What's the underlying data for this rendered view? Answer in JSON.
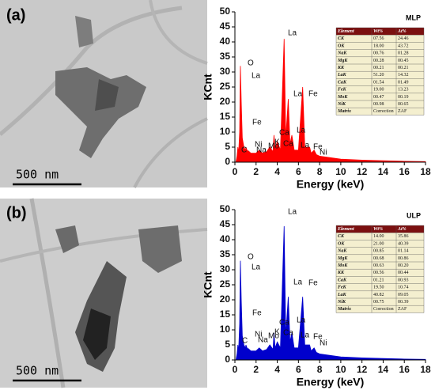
{
  "images": [
    {
      "label": "(a)",
      "scale_bar": "500 nm"
    },
    {
      "label": "(b)",
      "scale_bar": "500 nm"
    }
  ],
  "chart_data": [
    {
      "type": "area",
      "ylabel": "KCnt",
      "xlabel": "Energy (keV)",
      "color": "#ff0000",
      "x": [
        0.1,
        0.2,
        0.28,
        0.35,
        0.45,
        0.52,
        0.6,
        0.7,
        0.85,
        1.0,
        1.04,
        1.2,
        1.25,
        1.5,
        2.0,
        2.3,
        2.6,
        3.0,
        3.3,
        3.6,
        3.69,
        3.8,
        4.0,
        4.3,
        4.65,
        4.8,
        5.04,
        5.2,
        5.38,
        5.6,
        6.0,
        6.4,
        6.6,
        7.06,
        7.2,
        7.48,
        7.7,
        8.0,
        9.0,
        10.0,
        12.0,
        14.0,
        16.0,
        18.0
      ],
      "values": [
        0,
        2,
        5,
        3,
        10,
        32,
        20,
        8,
        5,
        4,
        5,
        3.5,
        3.8,
        3,
        3,
        4,
        3,
        3.5,
        5,
        3.5,
        9,
        4,
        7,
        4,
        41,
        8,
        21,
        6,
        9,
        4,
        4,
        25,
        5,
        5,
        3,
        4,
        2.5,
        2,
        1.5,
        1,
        0.7,
        0.5,
        0.3,
        0.2
      ],
      "xlim": [
        0,
        18
      ],
      "ylim": [
        0,
        50
      ],
      "xticks": [
        0,
        2,
        4,
        6,
        8,
        10,
        12,
        14,
        16,
        18
      ],
      "yticks": [
        0,
        5,
        10,
        15,
        20,
        25,
        30,
        35,
        40,
        45,
        50
      ],
      "annotations": [
        "La",
        "O",
        "La",
        "La",
        "Fe",
        "Fe",
        "Ca",
        "La",
        "K",
        "Ca",
        "Ni",
        "Mo",
        "Fe",
        "La",
        "Na",
        "C",
        "Ni"
      ],
      "inset_title": "MLP",
      "inset_table": {
        "header": [
          "Element",
          "Wt%",
          "At%"
        ],
        "rows": [
          [
            "CK",
            "07.56",
            "24.46"
          ],
          [
            "OK",
            "18.00",
            "43.72"
          ],
          [
            "NaK",
            "00.76",
            "01.28"
          ],
          [
            "MgK",
            "00.28",
            "00.45"
          ],
          [
            "KK",
            "00.21",
            "00.21"
          ],
          [
            "LaK",
            "51.20",
            "14.32"
          ],
          [
            "CaK",
            "01.54",
            "01.49"
          ],
          [
            "FeK",
            "19.00",
            "13.23"
          ],
          [
            "MoK",
            "00.47",
            "00.19"
          ],
          [
            "NiK",
            "00.98",
            "00.65"
          ],
          [
            "Matrix",
            "Correction",
            "ZAF"
          ]
        ]
      }
    },
    {
      "type": "area",
      "ylabel": "KCnt",
      "xlabel": "Energy (keV)",
      "color": "#0000cc",
      "x": [
        0.1,
        0.2,
        0.28,
        0.35,
        0.45,
        0.52,
        0.6,
        0.7,
        0.85,
        1.0,
        1.04,
        1.2,
        1.25,
        1.5,
        2.0,
        2.3,
        2.6,
        3.0,
        3.3,
        3.6,
        3.69,
        3.8,
        4.0,
        4.3,
        4.65,
        4.8,
        5.04,
        5.2,
        5.38,
        5.6,
        6.0,
        6.4,
        6.6,
        7.06,
        7.2,
        7.48,
        7.7,
        8.0,
        9.0,
        10.0,
        12.0,
        14.0,
        16.0,
        18.0
      ],
      "values": [
        0,
        2,
        5,
        3,
        12,
        33,
        20,
        8,
        5,
        4,
        5,
        3.5,
        3.8,
        3,
        3,
        4,
        3,
        3.5,
        5,
        3.5,
        9,
        4,
        6,
        4,
        44.5,
        8,
        21,
        6,
        9,
        4,
        4,
        21,
        5,
        5,
        3,
        4,
        2.5,
        2,
        1.5,
        1,
        0.7,
        0.5,
        0.3,
        0.2
      ],
      "xlim": [
        0,
        18
      ],
      "ylim": [
        0,
        50
      ],
      "xticks": [
        0,
        2,
        4,
        6,
        8,
        10,
        12,
        14,
        16,
        18
      ],
      "yticks": [
        0,
        5,
        10,
        15,
        20,
        25,
        30,
        35,
        40,
        45,
        50
      ],
      "annotations": [
        "La",
        "O",
        "La",
        "La",
        "Fe",
        "Fe",
        "Ca",
        "La",
        "K",
        "Ca",
        "Ni",
        "Mo",
        "Fe",
        "La",
        "Na",
        "C",
        "Ni"
      ],
      "inset_title": "ULP",
      "inset_table": {
        "header": [
          "Element",
          "Wt%",
          "At%"
        ],
        "rows": [
          [
            "CK",
            "14.00",
            "35.86"
          ],
          [
            "OK",
            "21.00",
            "40.39"
          ],
          [
            "NaK",
            "00.85",
            "01.14"
          ],
          [
            "MgK",
            "00.68",
            "00.86"
          ],
          [
            "MoK",
            "00.63",
            "00.20"
          ],
          [
            "KK",
            "00.56",
            "00.44"
          ],
          [
            "CaK",
            "01.21",
            "00.93"
          ],
          [
            "FeK",
            "19.50",
            "10.74"
          ],
          [
            "LaK",
            "40.82",
            "09.05"
          ],
          [
            "NiK",
            "00.75",
            "00.39"
          ],
          [
            "Matrix",
            "Correction",
            "ZAF"
          ]
        ]
      }
    }
  ]
}
